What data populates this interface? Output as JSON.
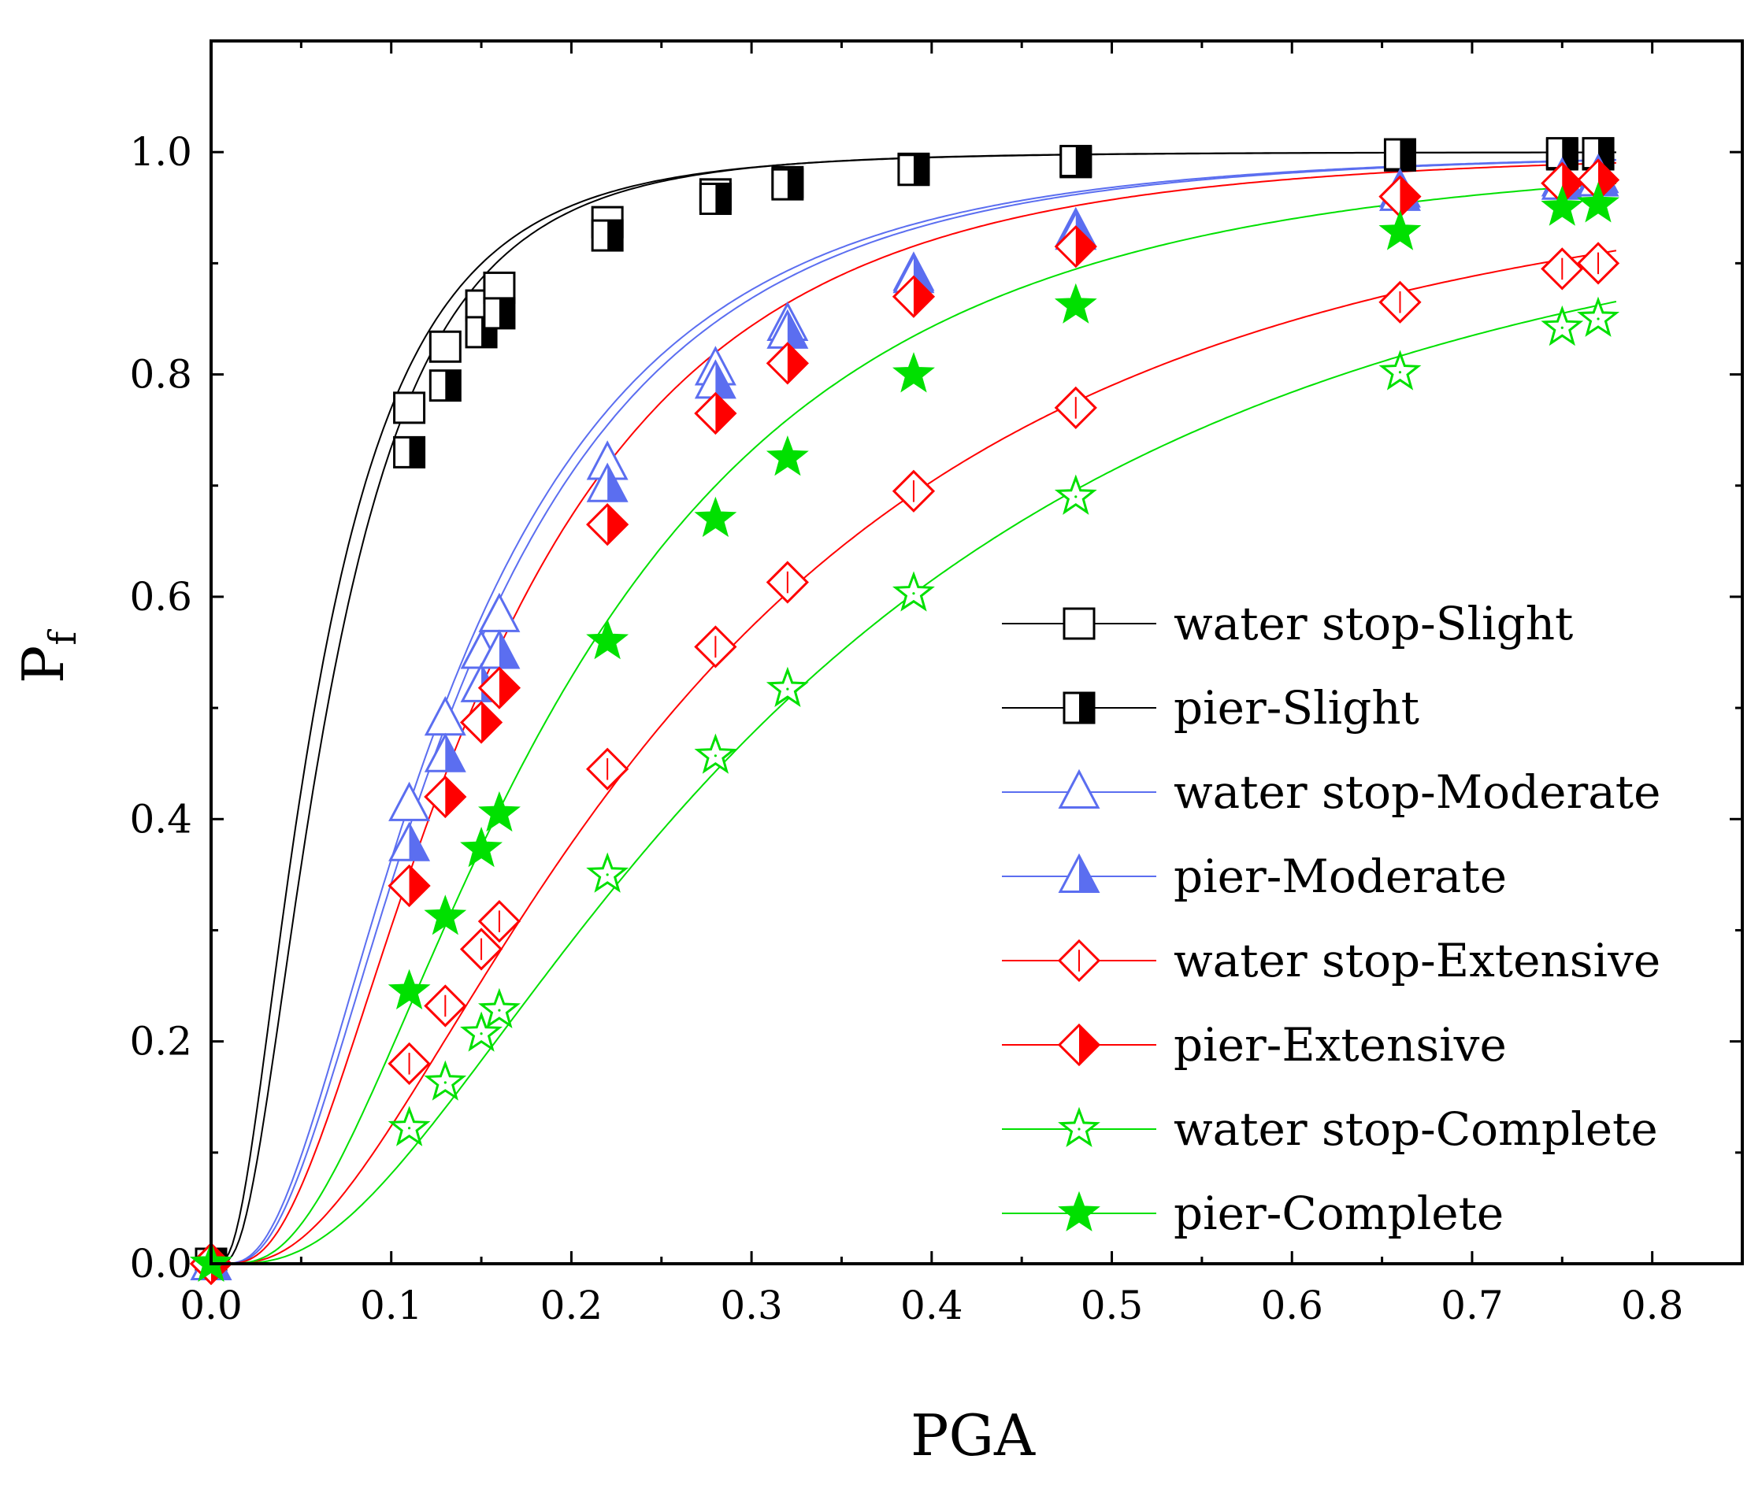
{
  "chart_data": {
    "type": "line",
    "title": "",
    "xlabel": "PGA",
    "ylabel": {
      "main": "P",
      "sub": "f"
    },
    "xlim": [
      0.0,
      0.85
    ],
    "ylim": [
      0.0,
      1.1
    ],
    "xticks": [
      0.0,
      0.1,
      0.2,
      0.3,
      0.4,
      0.5,
      0.6,
      0.7,
      0.8
    ],
    "xtick_labels": [
      "0.0",
      "0.1",
      "0.2",
      "0.3",
      "0.4",
      "0.5",
      "0.6",
      "0.7",
      "0.8"
    ],
    "yticks": [
      0.0,
      0.2,
      0.4,
      0.6,
      0.8,
      1.0
    ],
    "ytick_labels": [
      "0.0",
      "0.2",
      "0.4",
      "0.6",
      "0.8",
      "1.0"
    ],
    "grid": false,
    "legend_position": "bottom-right",
    "series": [
      {
        "name": "water stop-Slight",
        "color": "#000000",
        "marker": "square-open",
        "curve": {
          "median": 0.0575,
          "beta": 0.75
        },
        "points": [
          [
            0.0,
            0.0
          ],
          [
            0.11,
            0.77
          ],
          [
            0.13,
            0.825
          ],
          [
            0.15,
            0.862
          ],
          [
            0.16,
            0.878
          ],
          [
            0.22,
            0.937
          ],
          [
            0.28,
            0.962
          ],
          [
            0.32,
            0.973
          ],
          [
            0.39,
            0.985
          ],
          [
            0.48,
            0.991
          ],
          [
            0.66,
            0.997
          ],
          [
            0.75,
            0.998
          ],
          [
            0.77,
            0.998
          ]
        ]
      },
      {
        "name": "pier-Slight",
        "color": "#000000",
        "marker": "square-half",
        "curve": {
          "median": 0.0645,
          "beta": 0.7
        },
        "points": [
          [
            0.0,
            0.0
          ],
          [
            0.11,
            0.73
          ],
          [
            0.13,
            0.79
          ],
          [
            0.15,
            0.838
          ],
          [
            0.16,
            0.855
          ],
          [
            0.22,
            0.925
          ],
          [
            0.28,
            0.958
          ],
          [
            0.32,
            0.971
          ],
          [
            0.39,
            0.984
          ],
          [
            0.48,
            0.992
          ],
          [
            0.66,
            0.998
          ],
          [
            0.75,
            0.999
          ],
          [
            0.77,
            0.999
          ]
        ]
      },
      {
        "name": "water stop-Moderate",
        "color": "#5b6ef0",
        "marker": "triangle-open",
        "curve": {
          "median": 0.129,
          "beta": 0.73
        },
        "points": [
          [
            0.0,
            0.0
          ],
          [
            0.11,
            0.413
          ],
          [
            0.13,
            0.49
          ],
          [
            0.15,
            0.55
          ],
          [
            0.16,
            0.583
          ],
          [
            0.22,
            0.72
          ],
          [
            0.28,
            0.805
          ],
          [
            0.32,
            0.845
          ],
          [
            0.39,
            0.89
          ],
          [
            0.48,
            0.93
          ],
          [
            0.66,
            0.965
          ],
          [
            0.75,
            0.975
          ],
          [
            0.77,
            0.978
          ]
        ]
      },
      {
        "name": "pier-Moderate",
        "color": "#5b6ef0",
        "marker": "triangle-half",
        "curve": {
          "median": 0.134,
          "beta": 0.72
        },
        "points": [
          [
            0.0,
            0.0
          ],
          [
            0.11,
            0.377
          ],
          [
            0.13,
            0.457
          ],
          [
            0.15,
            0.52
          ],
          [
            0.16,
            0.55
          ],
          [
            0.22,
            0.7
          ],
          [
            0.28,
            0.793
          ],
          [
            0.32,
            0.838
          ],
          [
            0.39,
            0.888
          ],
          [
            0.48,
            0.927
          ],
          [
            0.66,
            0.962
          ],
          [
            0.75,
            0.972
          ],
          [
            0.77,
            0.975
          ]
        ]
      },
      {
        "name": "water stop-Extensive",
        "color": "#ff0000",
        "marker": "diamond-open",
        "curve": {
          "median": 0.258,
          "beta": 0.82
        },
        "points": [
          [
            0.0,
            0.0
          ],
          [
            0.11,
            0.18
          ],
          [
            0.13,
            0.232
          ],
          [
            0.15,
            0.283
          ],
          [
            0.16,
            0.308
          ],
          [
            0.22,
            0.445
          ],
          [
            0.28,
            0.555
          ],
          [
            0.32,
            0.613
          ],
          [
            0.39,
            0.695
          ],
          [
            0.48,
            0.77
          ],
          [
            0.66,
            0.865
          ],
          [
            0.75,
            0.895
          ],
          [
            0.77,
            0.9
          ]
        ]
      },
      {
        "name": "pier-Extensive",
        "color": "#ff0000",
        "marker": "diamond-half",
        "curve": {
          "median": 0.145,
          "beta": 0.72
        },
        "points": [
          [
            0.0,
            0.0
          ],
          [
            0.11,
            0.34
          ],
          [
            0.13,
            0.42
          ],
          [
            0.15,
            0.487
          ],
          [
            0.16,
            0.518
          ],
          [
            0.22,
            0.665
          ],
          [
            0.28,
            0.765
          ],
          [
            0.32,
            0.81
          ],
          [
            0.39,
            0.87
          ],
          [
            0.48,
            0.915
          ],
          [
            0.66,
            0.96
          ],
          [
            0.75,
            0.972
          ],
          [
            0.77,
            0.975
          ]
        ]
      },
      {
        "name": "water stop-Complete",
        "color": "#00e000",
        "marker": "star-open",
        "curve": {
          "median": 0.315,
          "beta": 0.82
        },
        "points": [
          [
            0.0,
            0.0
          ],
          [
            0.11,
            0.122
          ],
          [
            0.13,
            0.163
          ],
          [
            0.15,
            0.207
          ],
          [
            0.16,
            0.228
          ],
          [
            0.22,
            0.35
          ],
          [
            0.28,
            0.457
          ],
          [
            0.32,
            0.517
          ],
          [
            0.39,
            0.603
          ],
          [
            0.48,
            0.69
          ],
          [
            0.66,
            0.802
          ],
          [
            0.75,
            0.842
          ],
          [
            0.77,
            0.85
          ]
        ]
      },
      {
        "name": "pier-Complete",
        "color": "#00e000",
        "marker": "star-filled",
        "curve": {
          "median": 0.19,
          "beta": 0.74
        },
        "points": [
          [
            0.0,
            0.0
          ],
          [
            0.11,
            0.245
          ],
          [
            0.13,
            0.312
          ],
          [
            0.15,
            0.373
          ],
          [
            0.16,
            0.405
          ],
          [
            0.22,
            0.56
          ],
          [
            0.28,
            0.67
          ],
          [
            0.32,
            0.725
          ],
          [
            0.39,
            0.8
          ],
          [
            0.48,
            0.862
          ],
          [
            0.66,
            0.928
          ],
          [
            0.75,
            0.95
          ],
          [
            0.77,
            0.953
          ]
        ]
      }
    ]
  }
}
